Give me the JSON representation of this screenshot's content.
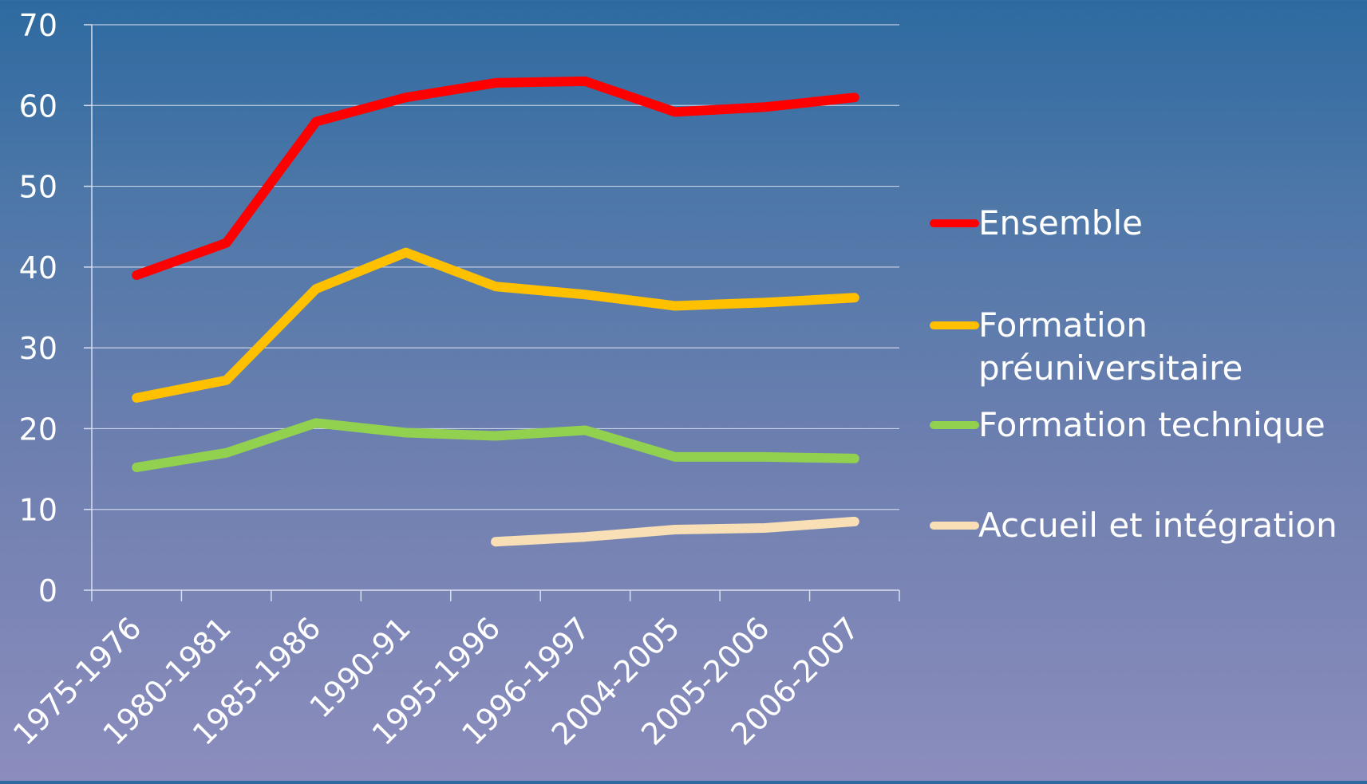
{
  "chart_data": {
    "type": "line",
    "title": "",
    "xlabel": "",
    "ylabel": "",
    "categories": [
      "1975-1976",
      "1980-1981",
      "1985-1986",
      "1990-91",
      "1995-1996",
      "1996-1997",
      "2004-2005",
      "2005-2006",
      "2006-2007"
    ],
    "ylim": [
      0,
      70
    ],
    "yticks": [
      "0",
      "10",
      "20",
      "30",
      "40",
      "50",
      "60",
      "70"
    ],
    "grid": true,
    "legend_position": "right",
    "series": [
      {
        "name": "Ensemble",
        "color": "#ff0000",
        "values": [
          39,
          43,
          58,
          61,
          62.8,
          63,
          59.2,
          59.8,
          61
        ]
      },
      {
        "name": "Formation préuniversitaire",
        "name_lines": [
          "Formation",
          "préuniversitaire"
        ],
        "color": "#ffc000",
        "values": [
          23.8,
          26,
          37.3,
          41.8,
          37.6,
          36.6,
          35.2,
          35.6,
          36.2
        ]
      },
      {
        "name": "Formation technique",
        "color": "#92d050",
        "values": [
          15.2,
          17,
          20.7,
          19.5,
          19.1,
          19.8,
          16.5,
          16.5,
          16.3
        ]
      },
      {
        "name": "Accueil et intégration",
        "color": "#f8dfb5",
        "values": [
          null,
          null,
          null,
          null,
          6,
          6.6,
          7.5,
          7.7,
          8.5
        ]
      }
    ]
  }
}
